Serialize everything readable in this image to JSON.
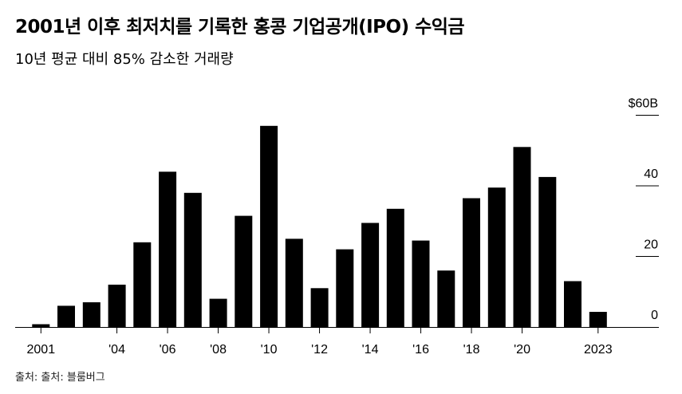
{
  "title": "2001년 이후 최저치를 기록한 홍콩 기업공개(IPO) 수익금",
  "subtitle": "10년 평균 대비 85% 감소한 거래량",
  "source": "출처: 출처: 블룸버그",
  "chart_data": {
    "type": "bar",
    "categories": [
      "2001",
      "2002",
      "2003",
      "2004",
      "2005",
      "2006",
      "2007",
      "2008",
      "2009",
      "2010",
      "2011",
      "2012",
      "2013",
      "2014",
      "2015",
      "2016",
      "2017",
      "2018",
      "2019",
      "2020",
      "2021",
      "2022",
      "2023"
    ],
    "values": [
      0.8,
      6.0,
      7.0,
      12.0,
      24.0,
      44.0,
      38.0,
      8.0,
      31.5,
      57.0,
      25.0,
      11.0,
      22.0,
      29.5,
      33.5,
      24.5,
      16.0,
      36.5,
      39.5,
      51.0,
      42.5,
      13.0,
      4.3
    ],
    "xtick_labels": [
      {
        "category": "2001",
        "label": "2001"
      },
      {
        "category": "2004",
        "label": "'04"
      },
      {
        "category": "2006",
        "label": "'06"
      },
      {
        "category": "2008",
        "label": "'08"
      },
      {
        "category": "2010",
        "label": "'10"
      },
      {
        "category": "2012",
        "label": "'12"
      },
      {
        "category": "2014",
        "label": "'14"
      },
      {
        "category": "2016",
        "label": "'16"
      },
      {
        "category": "2018",
        "label": "'18"
      },
      {
        "category": "2020",
        "label": "'20"
      },
      {
        "category": "2023",
        "label": "2023"
      }
    ],
    "yticks": [
      {
        "value": 0,
        "label": "0"
      },
      {
        "value": 20,
        "label": "20"
      },
      {
        "value": 40,
        "label": "40"
      },
      {
        "value": 60,
        "label": "$60B"
      }
    ],
    "ylim": [
      0,
      60
    ],
    "bar_color": "#000000",
    "grid": false,
    "y_axis_position": "right"
  }
}
